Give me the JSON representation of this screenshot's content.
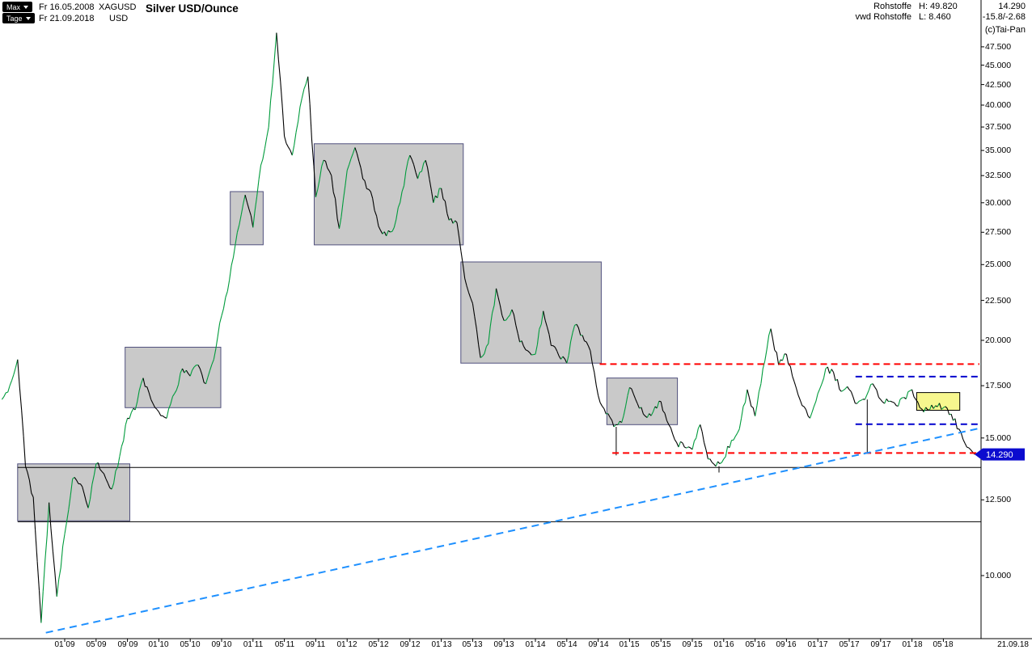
{
  "header": {
    "range_selector": "Max",
    "interval_selector": "Tage",
    "start_date": "Fr 16.05.2008",
    "end_date": "Fr 21.09.2018",
    "symbol": "XAGUSD",
    "currency": "USD",
    "title": "Silver USD/Ounce",
    "group": "Rohstoffe",
    "feed": "vwd Rohstoffe",
    "high": "H: 49.820",
    "low": "L: 8.460",
    "last": "14.290",
    "change": "-15.8/-2.68",
    "credit": "(c)Tai-Pan"
  },
  "axes": {
    "price_marker": "14.290",
    "end_date_label": "21.09.18",
    "y_ticks": [
      {
        "label": "47.500",
        "price": 47.5
      },
      {
        "label": "45.000",
        "price": 45
      },
      {
        "label": "42.500",
        "price": 42.5
      },
      {
        "label": "40.000",
        "price": 40
      },
      {
        "label": "37.500",
        "price": 37.5
      },
      {
        "label": "35.000",
        "price": 35
      },
      {
        "label": "32.500",
        "price": 32.5
      },
      {
        "label": "30.000",
        "price": 30
      },
      {
        "label": "27.500",
        "price": 27.5
      },
      {
        "label": "25.000",
        "price": 25
      },
      {
        "label": "22.500",
        "price": 22.5
      },
      {
        "label": "20.000",
        "price": 20
      },
      {
        "label": "17.500",
        "price": 17.5
      },
      {
        "label": "15.000",
        "price": 15
      },
      {
        "label": "12.500",
        "price": 12.5
      },
      {
        "label": "10.000",
        "price": 10
      }
    ],
    "x_ticks": [
      {
        "label": "01 09",
        "m": 8
      },
      {
        "label": "05 09",
        "m": 12
      },
      {
        "label": "09 09",
        "m": 16
      },
      {
        "label": "01 10",
        "m": 20
      },
      {
        "label": "05 10",
        "m": 24
      },
      {
        "label": "09 10",
        "m": 28
      },
      {
        "label": "01 11",
        "m": 32
      },
      {
        "label": "05 11",
        "m": 36
      },
      {
        "label": "09 11",
        "m": 40
      },
      {
        "label": "01 12",
        "m": 44
      },
      {
        "label": "05 12",
        "m": 48
      },
      {
        "label": "09 12",
        "m": 52
      },
      {
        "label": "01 13",
        "m": 56
      },
      {
        "label": "05 13",
        "m": 60
      },
      {
        "label": "09 13",
        "m": 64
      },
      {
        "label": "01 14",
        "m": 68
      },
      {
        "label": "05 14",
        "m": 72
      },
      {
        "label": "09 14",
        "m": 76
      },
      {
        "label": "01 15",
        "m": 80
      },
      {
        "label": "05 15",
        "m": 84
      },
      {
        "label": "09 15",
        "m": 88
      },
      {
        "label": "01 16",
        "m": 92
      },
      {
        "label": "05 16",
        "m": 96
      },
      {
        "label": "09 16",
        "m": 100
      },
      {
        "label": "01 17",
        "m": 104
      },
      {
        "label": "05 17",
        "m": 108
      },
      {
        "label": "09 17",
        "m": 112
      },
      {
        "label": "01 18",
        "m": 116
      },
      {
        "label": "05 18",
        "m": 120
      }
    ]
  },
  "chart_data": {
    "type": "line",
    "title": "Silver USD/Ounce",
    "y_scale": "log",
    "ylim": [
      8,
      52
    ],
    "high": 49.82,
    "low": 8.46,
    "last": 14.29,
    "x": [
      "2008-05",
      "2008-06",
      "2008-07",
      "2008-08",
      "2008-09",
      "2008-10",
      "2008-11",
      "2008-12",
      "2009-01",
      "2009-02",
      "2009-03",
      "2009-04",
      "2009-05",
      "2009-06",
      "2009-07",
      "2009-08",
      "2009-09",
      "2009-10",
      "2009-11",
      "2009-12",
      "2010-01",
      "2010-02",
      "2010-03",
      "2010-04",
      "2010-05",
      "2010-06",
      "2010-07",
      "2010-08",
      "2010-09",
      "2010-10",
      "2010-11",
      "2010-12",
      "2011-01",
      "2011-02",
      "2011-03",
      "2011-04",
      "2011-05",
      "2011-06",
      "2011-07",
      "2011-08",
      "2011-09",
      "2011-10",
      "2011-11",
      "2011-12",
      "2012-01",
      "2012-02",
      "2012-03",
      "2012-04",
      "2012-05",
      "2012-06",
      "2012-07",
      "2012-08",
      "2012-09",
      "2012-10",
      "2012-11",
      "2012-12",
      "2013-01",
      "2013-02",
      "2013-03",
      "2013-04",
      "2013-05",
      "2013-06",
      "2013-07",
      "2013-08",
      "2013-09",
      "2013-10",
      "2013-11",
      "2013-12",
      "2014-01",
      "2014-02",
      "2014-03",
      "2014-04",
      "2014-05",
      "2014-06",
      "2014-07",
      "2014-08",
      "2014-09",
      "2014-10",
      "2014-11",
      "2014-12",
      "2015-01",
      "2015-02",
      "2015-03",
      "2015-04",
      "2015-05",
      "2015-06",
      "2015-07",
      "2015-08",
      "2015-09",
      "2015-10",
      "2015-11",
      "2015-12",
      "2016-01",
      "2016-02",
      "2016-03",
      "2016-04",
      "2016-05",
      "2016-06",
      "2016-07",
      "2016-08",
      "2016-09",
      "2016-10",
      "2016-11",
      "2016-12",
      "2017-01",
      "2017-02",
      "2017-03",
      "2017-04",
      "2017-05",
      "2017-06",
      "2017-07",
      "2017-08",
      "2017-09",
      "2017-10",
      "2017-11",
      "2017-12",
      "2018-01",
      "2018-02",
      "2018-03",
      "2018-04",
      "2018-05",
      "2018-06",
      "2018-07",
      "2018-08",
      "2018-09"
    ],
    "values": [
      16.8,
      17.5,
      18.9,
      13.8,
      12.6,
      8.7,
      12.4,
      9.4,
      11.3,
      13.3,
      13.1,
      12.2,
      13.9,
      13.5,
      12.9,
      14.2,
      15.9,
      16.3,
      17.9,
      16.8,
      16.2,
      15.9,
      17.1,
      18.4,
      18.0,
      18.6,
      17.6,
      18.9,
      21.5,
      23.9,
      27.5,
      30.7,
      27.9,
      33.5,
      37.5,
      49.5,
      36.5,
      34.5,
      39.8,
      43.5,
      30.5,
      34.0,
      32.5,
      27.8,
      33.0,
      35.3,
      32.2,
      31.0,
      28.0,
      27.2,
      27.9,
      31.0,
      34.5,
      32.2,
      34.0,
      30.0,
      31.3,
      28.5,
      28.3,
      24.0,
      22.3,
      19.0,
      19.8,
      23.3,
      21.2,
      21.9,
      19.9,
      19.4,
      19.2,
      21.8,
      19.7,
      19.1,
      18.7,
      20.9,
      20.3,
      19.4,
      17.0,
      16.1,
      15.5,
      15.7,
      17.4,
      16.6,
      16.0,
      16.2,
      16.7,
      15.6,
      14.8,
      14.6,
      14.5,
      15.6,
      14.1,
      13.8,
      14.1,
      14.9,
      15.4,
      17.3,
      16.0,
      18.4,
      20.7,
      18.6,
      19.2,
      17.7,
      16.5,
      15.9,
      17.1,
      18.4,
      18.2,
      17.2,
      17.3,
      16.6,
      16.8,
      17.6,
      16.8,
      16.7,
      16.5,
      16.9,
      17.3,
      16.4,
      16.3,
      16.5,
      16.4,
      16.1,
      15.4,
      14.6,
      14.29
    ],
    "colors": {
      "up": "#009b3c",
      "down": "#000000",
      "box_fill": "#c9c9c9",
      "box_border": "#50507d",
      "resistance": "#ff0000",
      "support_blue": "#0000cd",
      "trend": "#1e90ff",
      "highlight_fill": "#f7f78e",
      "badge": "#0b0bcf"
    },
    "overlays": {
      "boxes": [
        {
          "from_m": 2.0,
          "to_m": 16.3,
          "low": 11.75,
          "high": 13.9
        },
        {
          "from_m": 15.7,
          "to_m": 27.9,
          "low": 16.4,
          "high": 19.6
        },
        {
          "from_m": 29.1,
          "to_m": 33.3,
          "low": 26.5,
          "high": 31.0
        },
        {
          "from_m": 39.8,
          "to_m": 58.8,
          "low": 26.5,
          "high": 35.7
        },
        {
          "from_m": 58.5,
          "to_m": 76.4,
          "low": 18.7,
          "high": 25.2
        },
        {
          "from_m": 77.1,
          "to_m": 86.1,
          "low": 15.6,
          "high": 17.9
        }
      ],
      "highlight_box": {
        "from_m": 116.6,
        "to_m": 122.1,
        "low": 16.28,
        "high": 17.15
      },
      "red_lines": [
        {
          "from_m": 76.2,
          "to_m": 124.6,
          "price": 18.65
        },
        {
          "from_m": 77.8,
          "to_m": 124.8,
          "price": 14.35
        }
      ],
      "blue_lines": [
        {
          "from_m": 108.8,
          "to_m": 124.6,
          "price": 17.97
        },
        {
          "from_m": 108.8,
          "to_m": 124.6,
          "price": 15.62
        }
      ],
      "black_lines": [
        {
          "from_m": 2.0,
          "to_m": 124.8,
          "price": 13.75
        },
        {
          "from_m": 2.0,
          "to_m": 124.8,
          "price": 11.72
        }
      ],
      "trendline": {
        "from_m": 5.6,
        "from_price": 8.45,
        "to_m": 124.8,
        "to_price": 15.45
      },
      "spikes": [
        {
          "m": 78.3,
          "low": 14.25
        },
        {
          "m": 91.4,
          "low": 13.55
        },
        {
          "m": 110.3,
          "low": 14.35
        }
      ]
    }
  }
}
